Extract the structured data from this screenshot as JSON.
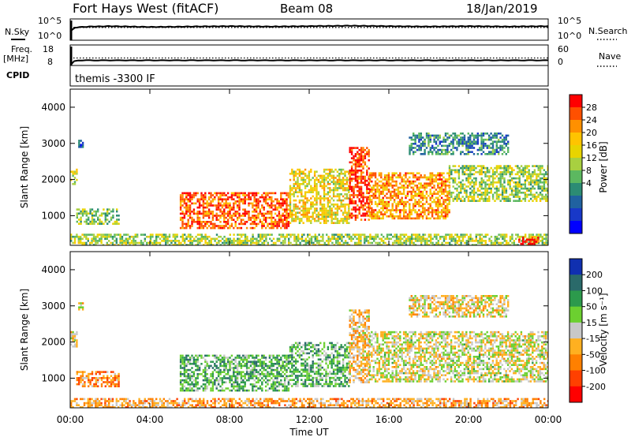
{
  "header": {
    "site": "Fort Hays West (fitACF)",
    "beam": "Beam 08",
    "date": "18/Jan/2019"
  },
  "side_labels": {
    "nsky": "N.Sky",
    "freq": "Freq.",
    "freq_unit": "[MHz]",
    "cpid": "CPID",
    "nsearch": "N.Search",
    "nave": "Nave"
  },
  "cpid_text": "themis -3300 IF",
  "chart_data": [
    {
      "type": "line",
      "panel": "noise",
      "left_ticks": [
        "10^5",
        "10^0"
      ],
      "right_ticks": [
        "10^5",
        "10^0"
      ],
      "series": [
        {
          "name": "N.Sky",
          "x": [
            0.0,
            0.25,
            1,
            2,
            4,
            6,
            8,
            10,
            12,
            14,
            16,
            18,
            20,
            22,
            24
          ],
          "values": [
            2,
            3,
            3.2,
            3.3,
            3.1,
            3.2,
            3.3,
            3.2,
            3.3,
            3.4,
            3.3,
            3.2,
            3.3,
            3.2,
            3.3
          ]
        },
        {
          "name": "N.Search",
          "x": [
            0,
            4,
            8,
            12,
            16,
            20,
            24
          ],
          "values": [
            3.0,
            3.0,
            3.0,
            3.0,
            3.0,
            3.0,
            3.0
          ]
        }
      ]
    },
    {
      "type": "line",
      "panel": "frequency",
      "left_ticks": [
        "18",
        "8"
      ],
      "right_ticks": [
        "60",
        "0"
      ],
      "series": [
        {
          "name": "Freq.",
          "x": [
            0.0,
            0.25,
            12,
            24
          ],
          "values": [
            8,
            10.5,
            10.5,
            10.5
          ]
        },
        {
          "name": "Nave",
          "x": [
            0,
            24
          ],
          "values": [
            22,
            22
          ]
        }
      ]
    },
    {
      "type": "heatmap",
      "panel": "power",
      "ylabel": "Slant Range [km]",
      "yticks": [
        "4000",
        "3000",
        "2000",
        "1000"
      ],
      "ylim": [
        180,
        4500
      ],
      "xlim": [
        0,
        24
      ],
      "colorbar": {
        "label": "Power [dB]",
        "ticks": [
          "28",
          "24",
          "20",
          "16",
          "12",
          "8",
          "4"
        ],
        "colors": [
          "#ff0000",
          "#ff5000",
          "#ff9000",
          "#ffc400",
          "#e8d400",
          "#a8d040",
          "#5cb860",
          "#2c8c74",
          "#2062a0",
          "#1838c8",
          "#0000ff"
        ]
      },
      "regions": [
        {
          "t0": 0.0,
          "t1": 0.3,
          "r0": 1900,
          "r1": 2300,
          "level": 0.55
        },
        {
          "t0": 0.4,
          "t1": 0.6,
          "r0": 2900,
          "r1": 3100,
          "level": 0.25
        },
        {
          "t0": 0.3,
          "t1": 2.4,
          "r0": 800,
          "r1": 1200,
          "level": 0.45
        },
        {
          "t0": 5.5,
          "t1": 11.0,
          "r0": 650,
          "r1": 1650,
          "level": 0.85
        },
        {
          "t0": 11.0,
          "t1": 14.0,
          "r0": 800,
          "r1": 2300,
          "level": 0.6
        },
        {
          "t0": 14.0,
          "t1": 15.0,
          "r0": 900,
          "r1": 2900,
          "level": 0.9
        },
        {
          "t0": 15.0,
          "t1": 19.0,
          "r0": 900,
          "r1": 2200,
          "level": 0.75
        },
        {
          "t0": 19.0,
          "t1": 24.0,
          "r0": 1400,
          "r1": 2400,
          "level": 0.5
        },
        {
          "t0": 17.0,
          "t1": 22.0,
          "r0": 2700,
          "r1": 3300,
          "level": 0.3
        },
        {
          "t0": 0.0,
          "t1": 24.0,
          "r0": 200,
          "r1": 500,
          "level": 0.5
        },
        {
          "t0": 22.5,
          "t1": 23.5,
          "r0": 230,
          "r1": 420,
          "level": 0.95
        }
      ]
    },
    {
      "type": "heatmap",
      "panel": "velocity",
      "ylabel": "Slant Range [km]",
      "yticks": [
        "4000",
        "3000",
        "2000",
        "1000"
      ],
      "ylim": [
        180,
        4500
      ],
      "xlim": [
        0,
        24
      ],
      "xlabel": "Time UT",
      "xticks": [
        "00:00",
        "04:00",
        "08:00",
        "12:00",
        "16:00",
        "20:00",
        "00:00"
      ],
      "colorbar": {
        "label": "Velocity [m s⁻¹]",
        "ticks": [
          "200",
          "100",
          "50",
          "15",
          "-15",
          "-50",
          "-100",
          "-200"
        ],
        "colors": [
          "#1030b0",
          "#2a6a6a",
          "#2c9a4c",
          "#6cd030",
          "#c8c8c8",
          "#ffb020",
          "#ff8000",
          "#ff4000",
          "#ff0000"
        ]
      },
      "regions": [
        {
          "t0": 0.0,
          "t1": 0.3,
          "r0": 1900,
          "r1": 2300,
          "level": 0.45
        },
        {
          "t0": 0.4,
          "t1": 0.6,
          "r0": 2900,
          "r1": 3100,
          "level": 0.45
        },
        {
          "t0": 0.3,
          "t1": 2.4,
          "r0": 800,
          "r1": 1200,
          "level": 0.3
        },
        {
          "t0": 5.5,
          "t1": 11.0,
          "r0": 650,
          "r1": 1650,
          "level": 0.68
        },
        {
          "t0": 11.0,
          "t1": 14.0,
          "r0": 800,
          "r1": 2000,
          "level": 0.66
        },
        {
          "t0": 14.0,
          "t1": 15.0,
          "r0": 900,
          "r1": 2900,
          "level": 0.4
        },
        {
          "t0": 15.0,
          "t1": 24.0,
          "r0": 900,
          "r1": 2300,
          "level": 0.5
        },
        {
          "t0": 17.0,
          "t1": 22.0,
          "r0": 2700,
          "r1": 3300,
          "level": 0.45
        },
        {
          "t0": 0.0,
          "t1": 24.0,
          "r0": 200,
          "r1": 450,
          "level": 0.35
        }
      ]
    }
  ]
}
